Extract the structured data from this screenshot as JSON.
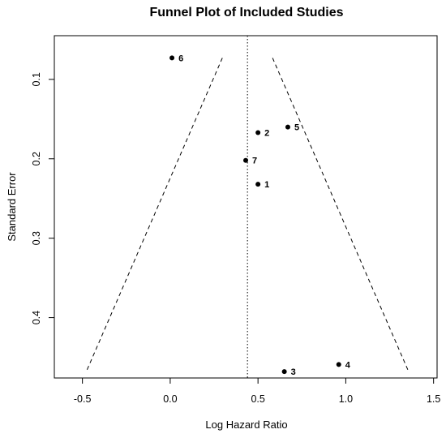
{
  "chart_data": {
    "type": "scatter",
    "title": "Funnel Plot of Included Studies",
    "xlabel": "Log Hazard Ratio",
    "ylabel": "Standard Error",
    "xlim": [
      -0.66,
      1.52
    ],
    "ylim": [
      0.476,
      0.045
    ],
    "y_axis_reversed": true,
    "x_ticks": [
      -0.5,
      0.0,
      0.5,
      1.0,
      1.5
    ],
    "x_tick_labels": [
      "-0.5",
      "0.0",
      "0.5",
      "1.0",
      "1.5"
    ],
    "y_ticks": [
      0.1,
      0.2,
      0.3,
      0.4
    ],
    "y_tick_labels": [
      "0.1",
      "0.2",
      "0.3",
      "0.4"
    ],
    "grid": false,
    "points": [
      {
        "label": "1",
        "x": 0.5,
        "y": 0.232
      },
      {
        "label": "2",
        "x": 0.5,
        "y": 0.167
      },
      {
        "label": "3",
        "x": 0.65,
        "y": 0.468
      },
      {
        "label": "4",
        "x": 0.96,
        "y": 0.459
      },
      {
        "label": "5",
        "x": 0.67,
        "y": 0.16
      },
      {
        "label": "6",
        "x": 0.01,
        "y": 0.073
      },
      {
        "label": "7",
        "x": 0.43,
        "y": 0.202
      }
    ],
    "pooled_estimate": 0.44,
    "funnel": {
      "se_top": 0.073,
      "se_bottom": 0.468,
      "left_top_x": 0.297,
      "right_top_x": 0.583,
      "left_bottom_x": -0.478,
      "right_bottom_x": 1.358
    }
  }
}
